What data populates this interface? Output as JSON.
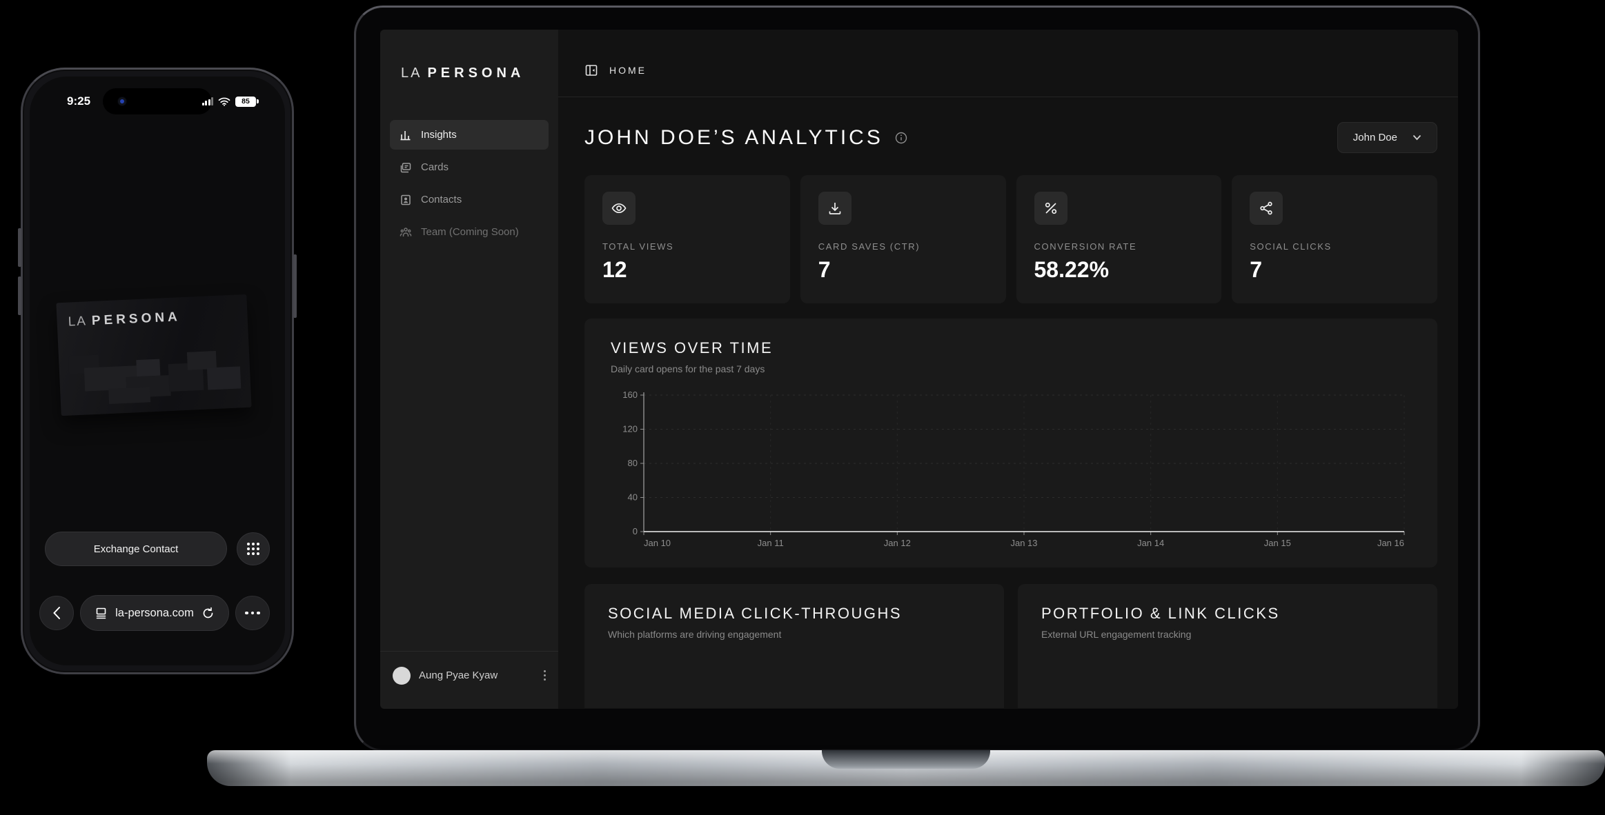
{
  "colors": {
    "background": "#000000",
    "sidebar_bg": "#1c1c1c",
    "main_bg": "#121212",
    "card_bg": "#1a1a1a",
    "text_primary": "#fafafa",
    "text_muted": "#8e8e8e",
    "grid_line": "#2e2e2e",
    "axis_line": "#9a9a9a"
  },
  "phone": {
    "status": {
      "time": "9:25",
      "battery": "85",
      "icons": [
        "cellular-signal-icon",
        "wifi-icon",
        "battery-icon"
      ]
    },
    "business_card": {
      "brand_first": "LA",
      "brand_rest": "PERSONA"
    },
    "exchange_button_label": "Exchange Contact",
    "grid_button_icon": "app-grid-icon",
    "browser": {
      "back_icon": "back-chevron-icon",
      "page_icon": "page-icon",
      "url": "la-persona.com",
      "reload_icon": "reload-icon",
      "more_icon": "ellipsis-icon"
    }
  },
  "laptop": {
    "sidebar": {
      "logo_first": "LA",
      "logo_rest": "PERSONA",
      "items": [
        {
          "label": "Insights",
          "icon": "bar-chart-icon",
          "active": true
        },
        {
          "label": "Cards",
          "icon": "cards-icon",
          "active": false
        },
        {
          "label": "Contacts",
          "icon": "contact-card-icon",
          "active": false
        },
        {
          "label": "Team (Coming Soon)",
          "icon": "team-icon",
          "active": false
        }
      ],
      "footer": {
        "name": "Aung Pyae Kyaw",
        "menu_icon": "kebab-menu-icon"
      }
    },
    "topbar": {
      "toggle_icon": "sidebar-toggle-icon",
      "breadcrumb": "HOME"
    },
    "main": {
      "title": "JOHN DOE’S ANALYTICS",
      "title_info_icon": "info-icon",
      "profile_selector": {
        "label": "John Doe",
        "chevron_icon": "chevron-down-icon"
      },
      "stats": [
        {
          "icon": "eye-icon",
          "label": "TOTAL VIEWS",
          "value": "12"
        },
        {
          "icon": "download-icon",
          "label": "CARD SAVES (CTR)",
          "value": "7"
        },
        {
          "icon": "percent-icon",
          "label": "CONVERSION RATE",
          "value": "58.22%"
        },
        {
          "icon": "share-icon",
          "label": "SOCIAL CLICKS",
          "value": "7"
        }
      ],
      "chart_section": {
        "title": "VIEWS OVER TIME",
        "subtitle": "Daily card opens for the past 7 days"
      },
      "sections": [
        {
          "title": "SOCIAL MEDIA CLICK-THROUGHS",
          "subtitle": "Which platforms are driving engagement"
        },
        {
          "title": "PORTFOLIO & LINK CLICKS",
          "subtitle": "External URL engagement tracking"
        }
      ]
    }
  },
  "chart_data": {
    "type": "line",
    "title": "VIEWS OVER TIME",
    "subtitle": "Daily card opens for the past 7 days",
    "x": [
      "Jan 10",
      "Jan 11",
      "Jan 12",
      "Jan 13",
      "Jan 14",
      "Jan 15",
      "Jan 16"
    ],
    "series": [
      {
        "name": "Daily card opens",
        "values": [
          0,
          0,
          0,
          0,
          0,
          0,
          0
        ]
      }
    ],
    "xlabel": "",
    "ylabel": "",
    "ylim": [
      0,
      160
    ],
    "yticks": [
      0,
      40,
      80,
      120,
      160
    ],
    "grid": true,
    "grid_style": "dashed",
    "legend": false
  }
}
